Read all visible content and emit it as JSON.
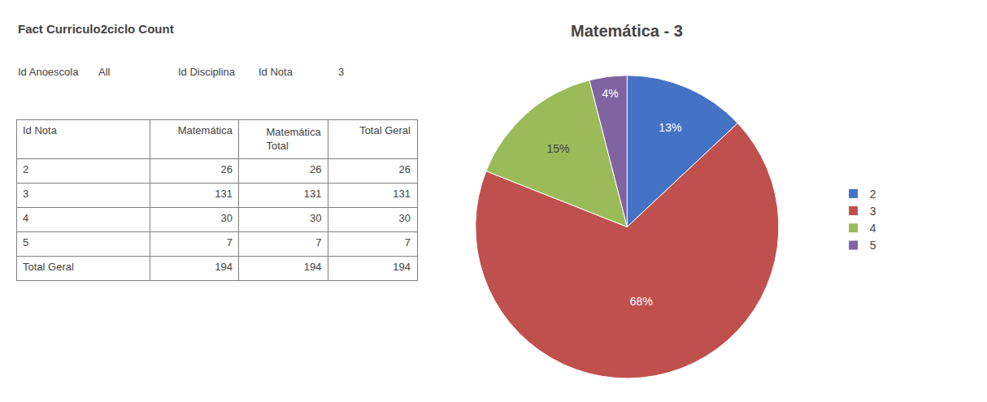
{
  "chart_data": [
    {
      "type": "table",
      "title": "Fact Curriculo2ciclo Count",
      "annotations": [
        "Id Anoescola",
        "All",
        "Id Disciplina",
        "Id Nota",
        "3"
      ],
      "xlabel": "Id Nota",
      "categories": [
        "2",
        "3",
        "4",
        "5",
        "Total Geral"
      ],
      "series": [
        {
          "name": "Matemática",
          "values": [
            26,
            131,
            30,
            7,
            194
          ]
        },
        {
          "name": "Matemática Total",
          "values": [
            26,
            131,
            30,
            7,
            194
          ]
        },
        {
          "name": "Total Geral",
          "values": [
            26,
            131,
            30,
            7,
            194
          ]
        }
      ]
    },
    {
      "type": "pie",
      "title": "Matemática - 3",
      "categories": [
        "2",
        "3",
        "4",
        "5"
      ],
      "values": [
        13,
        68,
        15,
        4
      ],
      "value_labels": [
        "13%",
        "68%",
        "15%",
        "4%"
      ],
      "colors": [
        "#4472c4",
        "#c0504d",
        "#9bbb59",
        "#8064a2"
      ],
      "data_labels": true,
      "legend": "right"
    }
  ]
}
